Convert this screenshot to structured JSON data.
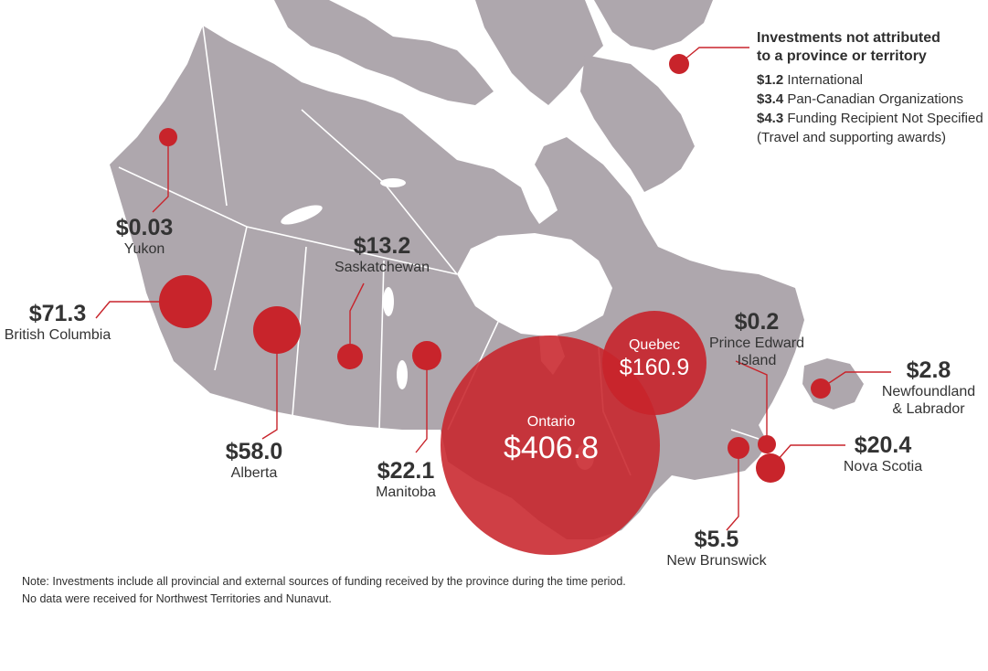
{
  "colors": {
    "bubble": "#c8242b",
    "land": "#aea7ad",
    "border": "#ffffff",
    "leader": "#c8242b"
  },
  "legend": {
    "title_line1": "Investments not attributed",
    "title_line2": "to a province or territory",
    "items": [
      {
        "value": "$1.2",
        "label": "International"
      },
      {
        "value": "$3.4",
        "label": "Pan-Canadian Organizations"
      },
      {
        "value": "$4.3",
        "label": "Funding Recipient Not Specified"
      }
    ],
    "subnote": "(Travel and supporting awards)"
  },
  "regions": {
    "yukon": {
      "amount": "$0.03",
      "name": "Yukon",
      "value": 0.03
    },
    "bc": {
      "amount": "$71.3",
      "name": "British Columbia",
      "value": 71.3
    },
    "alberta": {
      "amount": "$58.0",
      "name": "Alberta",
      "value": 58.0
    },
    "saskatchewan": {
      "amount": "$13.2",
      "name": "Saskatchewan",
      "value": 13.2
    },
    "manitoba": {
      "amount": "$22.1",
      "name": "Manitoba",
      "value": 22.1
    },
    "ontario": {
      "amount": "$406.8",
      "name": "Ontario",
      "value": 406.8
    },
    "quebec": {
      "amount": "$160.9",
      "name": "Quebec",
      "value": 160.9
    },
    "pei": {
      "amount": "$0.2",
      "name_line1": "Prince Edward",
      "name_line2": "Island",
      "value": 0.2
    },
    "nl": {
      "amount": "$2.8",
      "name_line1": "Newfoundland",
      "name_line2": "& Labrador",
      "value": 2.8
    },
    "ns": {
      "amount": "$20.4",
      "name": "Nova Scotia",
      "value": 20.4
    },
    "nb": {
      "amount": "$5.5",
      "name": "New Brunswick",
      "value": 5.5
    }
  },
  "note": {
    "line1": "Note: Investments include all provincial and external sources of funding received by the province during the time period.",
    "line2": "No data were received for Northwest Territories and Nunavut."
  }
}
